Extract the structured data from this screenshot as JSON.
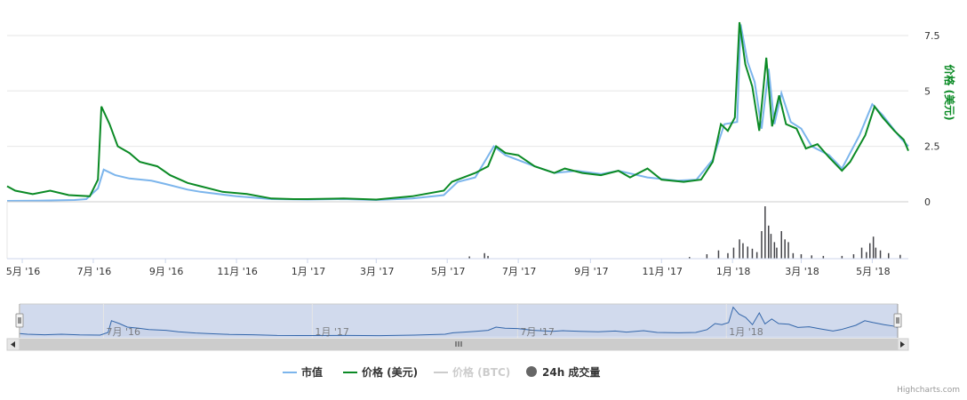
{
  "chart_data": {
    "type": "line",
    "x_start": "2016-04",
    "x_end": "2018-06",
    "x_ticks": [
      "5月 '16",
      "7月 '16",
      "9月 '16",
      "11月 '16",
      "1月 '17",
      "3月 '17",
      "5月 '17",
      "7月 '17",
      "9月 '17",
      "11月 '17",
      "1月 '18",
      "3月 '18",
      "5月 '18"
    ],
    "navigator_ticks": [
      "7月 '16",
      "1月 '17",
      "7月 '17",
      "1月 '18"
    ],
    "y_axis": {
      "title": "价格 (美元)",
      "ticks": [
        "0",
        "2.5",
        "5",
        "7.5"
      ],
      "ylim": [
        0,
        8.5
      ]
    },
    "series": [
      {
        "name": "市值",
        "color": "#7cb5ec",
        "values": [
          [
            "2016-04-18",
            0.04
          ],
          [
            "2016-05-15",
            0.05
          ],
          [
            "2016-06-15",
            0.08
          ],
          [
            "2016-06-25",
            0.12
          ],
          [
            "2016-07-05",
            0.6
          ],
          [
            "2016-07-10",
            1.45
          ],
          [
            "2016-07-20",
            1.2
          ],
          [
            "2016-08-01",
            1.05
          ],
          [
            "2016-08-20",
            0.95
          ],
          [
            "2016-09-01",
            0.8
          ],
          [
            "2016-09-20",
            0.55
          ],
          [
            "2016-10-01",
            0.45
          ],
          [
            "2016-11-01",
            0.25
          ],
          [
            "2016-12-01",
            0.12
          ],
          [
            "2017-01-01",
            0.1
          ],
          [
            "2017-02-01",
            0.12
          ],
          [
            "2017-03-01",
            0.08
          ],
          [
            "2017-04-01",
            0.15
          ],
          [
            "2017-04-28",
            0.3
          ],
          [
            "2017-05-10",
            0.9
          ],
          [
            "2017-05-25",
            1.1
          ],
          [
            "2017-06-10",
            2.5
          ],
          [
            "2017-06-20",
            2.1
          ],
          [
            "2017-07-15",
            1.6
          ],
          [
            "2017-08-01",
            1.3
          ],
          [
            "2017-08-20",
            1.4
          ],
          [
            "2017-09-10",
            1.25
          ],
          [
            "2017-09-25",
            1.4
          ],
          [
            "2017-10-20",
            1.1
          ],
          [
            "2017-11-15",
            0.95
          ],
          [
            "2017-12-01",
            1.0
          ],
          [
            "2017-12-15",
            1.9
          ],
          [
            "2017-12-25",
            3.5
          ],
          [
            "2018-01-05",
            3.6
          ],
          [
            "2018-01-08",
            8.0
          ],
          [
            "2018-01-14",
            6.3
          ],
          [
            "2018-01-20",
            5.4
          ],
          [
            "2018-01-26",
            3.3
          ],
          [
            "2018-02-01",
            6.0
          ],
          [
            "2018-02-06",
            3.5
          ],
          [
            "2018-02-12",
            4.9
          ],
          [
            "2018-02-20",
            3.6
          ],
          [
            "2018-03-01",
            3.3
          ],
          [
            "2018-03-10",
            2.5
          ],
          [
            "2018-03-25",
            2.1
          ],
          [
            "2018-04-05",
            1.5
          ],
          [
            "2018-04-20",
            3.0
          ],
          [
            "2018-05-01",
            4.4
          ],
          [
            "2018-05-10",
            3.9
          ],
          [
            "2018-05-25",
            2.9
          ],
          [
            "2018-06-01",
            2.5
          ]
        ]
      },
      {
        "name": "价格 (美元)",
        "color": "#0b8a25",
        "values": [
          [
            "2016-04-18",
            0.7
          ],
          [
            "2016-04-25",
            0.5
          ],
          [
            "2016-05-10",
            0.35
          ],
          [
            "2016-05-25",
            0.5
          ],
          [
            "2016-06-10",
            0.3
          ],
          [
            "2016-06-28",
            0.25
          ],
          [
            "2016-07-05",
            1.0
          ],
          [
            "2016-07-08",
            4.3
          ],
          [
            "2016-07-15",
            3.5
          ],
          [
            "2016-07-22",
            2.5
          ],
          [
            "2016-08-01",
            2.2
          ],
          [
            "2016-08-10",
            1.8
          ],
          [
            "2016-08-25",
            1.6
          ],
          [
            "2016-09-05",
            1.2
          ],
          [
            "2016-09-20",
            0.85
          ],
          [
            "2016-10-01",
            0.7
          ],
          [
            "2016-10-20",
            0.45
          ],
          [
            "2016-11-10",
            0.35
          ],
          [
            "2016-12-01",
            0.15
          ],
          [
            "2016-12-20",
            0.12
          ],
          [
            "2017-01-01",
            0.12
          ],
          [
            "2017-02-01",
            0.15
          ],
          [
            "2017-03-01",
            0.1
          ],
          [
            "2017-04-01",
            0.25
          ],
          [
            "2017-04-28",
            0.5
          ],
          [
            "2017-05-05",
            0.9
          ],
          [
            "2017-05-15",
            1.1
          ],
          [
            "2017-05-25",
            1.3
          ],
          [
            "2017-06-05",
            1.6
          ],
          [
            "2017-06-12",
            2.5
          ],
          [
            "2017-06-20",
            2.2
          ],
          [
            "2017-07-01",
            2.1
          ],
          [
            "2017-07-15",
            1.6
          ],
          [
            "2017-08-01",
            1.3
          ],
          [
            "2017-08-10",
            1.5
          ],
          [
            "2017-08-25",
            1.3
          ],
          [
            "2017-09-10",
            1.2
          ],
          [
            "2017-09-25",
            1.4
          ],
          [
            "2017-10-05",
            1.1
          ],
          [
            "2017-10-20",
            1.5
          ],
          [
            "2017-11-01",
            1.0
          ],
          [
            "2017-11-20",
            0.9
          ],
          [
            "2017-12-05",
            1.0
          ],
          [
            "2017-12-15",
            1.8
          ],
          [
            "2017-12-22",
            3.5
          ],
          [
            "2017-12-28",
            3.2
          ],
          [
            "2018-01-03",
            3.8
          ],
          [
            "2018-01-07",
            8.1
          ],
          [
            "2018-01-12",
            6.2
          ],
          [
            "2018-01-18",
            5.2
          ],
          [
            "2018-01-24",
            3.2
          ],
          [
            "2018-01-30",
            6.5
          ],
          [
            "2018-02-04",
            3.4
          ],
          [
            "2018-02-10",
            4.8
          ],
          [
            "2018-02-16",
            3.5
          ],
          [
            "2018-02-25",
            3.3
          ],
          [
            "2018-03-05",
            2.4
          ],
          [
            "2018-03-15",
            2.6
          ],
          [
            "2018-03-25",
            2.0
          ],
          [
            "2018-04-05",
            1.4
          ],
          [
            "2018-04-12",
            1.8
          ],
          [
            "2018-04-25",
            3.0
          ],
          [
            "2018-05-03",
            4.3
          ],
          [
            "2018-05-10",
            3.8
          ],
          [
            "2018-05-20",
            3.2
          ],
          [
            "2018-05-28",
            2.8
          ],
          [
            "2018-06-01",
            2.3
          ]
        ]
      },
      {
        "name": "价格 (BTC)",
        "color": "#cccccc",
        "visible": false,
        "values": []
      },
      {
        "name": "24h 成交量",
        "color": "#434348",
        "type": "column",
        "values": [
          [
            "2017-05-20",
            0.04
          ],
          [
            "2017-06-02",
            0.1
          ],
          [
            "2017-06-05",
            0.05
          ],
          [
            "2017-11-25",
            0.03
          ],
          [
            "2017-12-10",
            0.08
          ],
          [
            "2017-12-20",
            0.15
          ],
          [
            "2017-12-28",
            0.1
          ],
          [
            "2018-01-02",
            0.2
          ],
          [
            "2018-01-07",
            0.35
          ],
          [
            "2018-01-10",
            0.28
          ],
          [
            "2018-01-14",
            0.22
          ],
          [
            "2018-01-18",
            0.18
          ],
          [
            "2018-01-22",
            0.12
          ],
          [
            "2018-01-26",
            0.5
          ],
          [
            "2018-01-29",
            0.95
          ],
          [
            "2018-02-01",
            0.6
          ],
          [
            "2018-02-03",
            0.45
          ],
          [
            "2018-02-06",
            0.3
          ],
          [
            "2018-02-08",
            0.2
          ],
          [
            "2018-02-12",
            0.5
          ],
          [
            "2018-02-15",
            0.35
          ],
          [
            "2018-02-18",
            0.3
          ],
          [
            "2018-02-22",
            0.1
          ],
          [
            "2018-03-01",
            0.08
          ],
          [
            "2018-03-10",
            0.06
          ],
          [
            "2018-03-20",
            0.05
          ],
          [
            "2018-04-05",
            0.05
          ],
          [
            "2018-04-15",
            0.08
          ],
          [
            "2018-04-22",
            0.2
          ],
          [
            "2018-04-26",
            0.12
          ],
          [
            "2018-04-29",
            0.28
          ],
          [
            "2018-05-02",
            0.4
          ],
          [
            "2018-05-04",
            0.2
          ],
          [
            "2018-05-08",
            0.15
          ],
          [
            "2018-05-15",
            0.1
          ],
          [
            "2018-05-25",
            0.07
          ]
        ]
      }
    ],
    "legend": {
      "placement": "bottom-center"
    },
    "grid": true
  },
  "credits": "Highcharts.com"
}
